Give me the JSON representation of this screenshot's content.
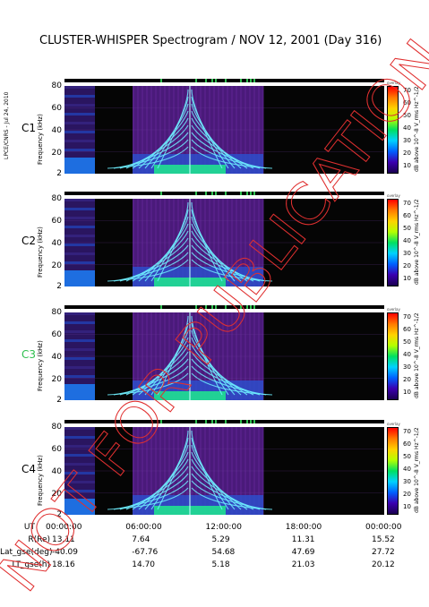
{
  "title": "CLUSTER-WHISPER Spectrogram / NOV 12, 2001 (Day 316)",
  "side_label": "LPCE/CNRS - Jul 24, 2010",
  "watermark_text": "NOT FOR PUBLICATION",
  "colors": {
    "panel_bg": "#050505",
    "plasma_purple": "#4a1a7a",
    "emission_cyan": "#6ff0ff",
    "watermark": "#e03030",
    "c3_label": "#2fbf4f"
  },
  "colorbar": {
    "top_label": "overlay",
    "title": "dB above 10^-8 V_rms Hz^-1/2",
    "ticks": [
      "70",
      "60",
      "50",
      "40",
      "30",
      "20",
      "10"
    ]
  },
  "panels": [
    {
      "sat": "C1",
      "ylabel": "Frequency (kHz)",
      "yticks": [
        "80",
        "60",
        "40",
        "20",
        "2"
      ]
    },
    {
      "sat": "C2",
      "ylabel": "Frequency (kHz)",
      "yticks": [
        "80",
        "60",
        "40",
        "20",
        "2"
      ]
    },
    {
      "sat": "C3",
      "ylabel": "Frequency (kHz)",
      "yticks": [
        "80",
        "60",
        "40",
        "20",
        "2"
      ]
    },
    {
      "sat": "C4",
      "ylabel": "Frequency (kHz)",
      "yticks": [
        "80",
        "60",
        "40",
        "20",
        "2"
      ]
    }
  ],
  "chart_data": {
    "type": "heatmap",
    "title": "CLUSTER-WHISPER Spectrogram / NOV 12, 2001 (Day 316)",
    "xlabel": "UT",
    "ylabel": "Frequency (kHz)",
    "x_range": [
      "00:00:00",
      "00:00:00"
    ],
    "x_ticks": [
      "00:00:00",
      "06:00:00",
      "12:00:00",
      "18:00:00",
      "00:00:00"
    ],
    "y_ticks": [
      2,
      20,
      40,
      60,
      80
    ],
    "ylim": [
      2,
      80
    ],
    "colorbar_range": [
      10,
      70
    ],
    "colorbar_unit": "dB above 10^-8 V_rms Hz^-1/2",
    "panels": [
      "C1",
      "C2",
      "C3",
      "C4"
    ],
    "ephemeris": {
      "rows": [
        {
          "label": "R(Re)",
          "values": [
            "13.11",
            "7.64",
            "5.29",
            "11.31",
            "15.52"
          ]
        },
        {
          "label": "Lat_gse(deg)",
          "values": [
            "-40.09",
            "-67.76",
            "54.68",
            "47.69",
            "27.72"
          ]
        },
        {
          "label": "LT_gse(h)",
          "values": [
            "18.16",
            "14.70",
            "5.18",
            "21.03",
            "20.12"
          ]
        }
      ]
    }
  }
}
